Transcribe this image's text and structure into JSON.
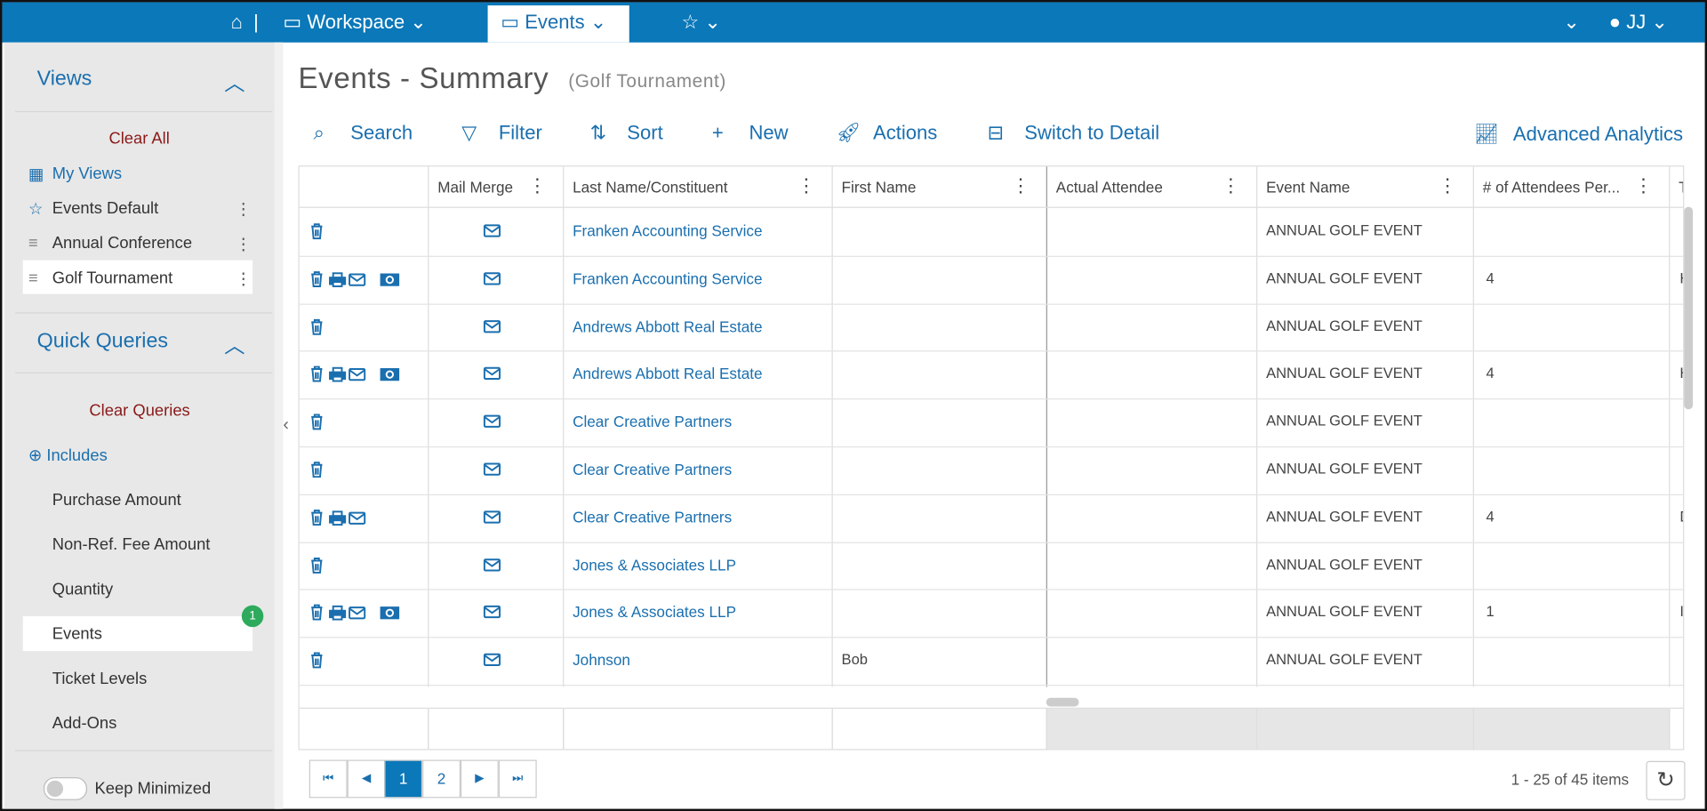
{
  "nav": {
    "workspace": "Workspace",
    "events": "Events",
    "user": "JJ"
  },
  "sidebar": {
    "views": {
      "title": "Views",
      "clear": "Clear All",
      "items": [
        "My Views",
        "Events Default",
        "Annual Conference",
        "Golf Tournament"
      ]
    },
    "quick_queries": {
      "title": "Quick Queries",
      "clear": "Clear Queries",
      "includes": "Includes",
      "items": [
        "Purchase Amount",
        "Non-Ref. Fee Amount",
        "Quantity",
        "Events",
        "Ticket Levels",
        "Add-Ons"
      ],
      "badge": "1"
    },
    "keep_minimized": "Keep Minimized"
  },
  "header": {
    "title": "Events - Summary",
    "subtitle": "(Golf Tournament)"
  },
  "toolbar": {
    "items": [
      "Search",
      "Filter",
      "Sort",
      "New",
      "Actions",
      "Switch to Detail"
    ],
    "analytics": "Advanced Analytics"
  },
  "table": {
    "columns": [
      "Mail Merge",
      "Last Name/Constituent",
      "First Name",
      "Actual Attendee",
      "Event Name",
      "# of Attendees Per...",
      "T"
    ],
    "rows": [
      {
        "name": "Franken Accounting Service",
        "event": "ANNUAL GOLF EVENT"
      },
      {
        "name": "Franken Accounting Service",
        "event": "ANNUAL GOLF EVENT",
        "attendees": "4",
        "extra": "H"
      },
      {
        "name": "Andrews Abbott Real Estate",
        "event": "ANNUAL GOLF EVENT"
      },
      {
        "name": "Andrews Abbott Real Estate",
        "event": "ANNUAL GOLF EVENT",
        "attendees": "4",
        "extra": "H"
      },
      {
        "name": "Clear Creative Partners",
        "event": "ANNUAL GOLF EVENT"
      },
      {
        "name": "Clear Creative Partners",
        "event": "ANNUAL GOLF EVENT"
      },
      {
        "name": "Clear Creative Partners",
        "event": "ANNUAL GOLF EVENT",
        "attendees": "4",
        "extra": "D"
      },
      {
        "name": "Jones & Associates LLP",
        "event": "ANNUAL GOLF EVENT"
      },
      {
        "name": "Jones & Associates LLP",
        "event": "ANNUAL GOLF EVENT",
        "attendees": "1",
        "extra": "I"
      },
      {
        "name": "Johnson",
        "first": "Bob",
        "event": "ANNUAL GOLF EVENT"
      }
    ]
  },
  "pagination": {
    "pages": [
      "1",
      "2"
    ],
    "summary": "1 - 25 of 45 items"
  }
}
